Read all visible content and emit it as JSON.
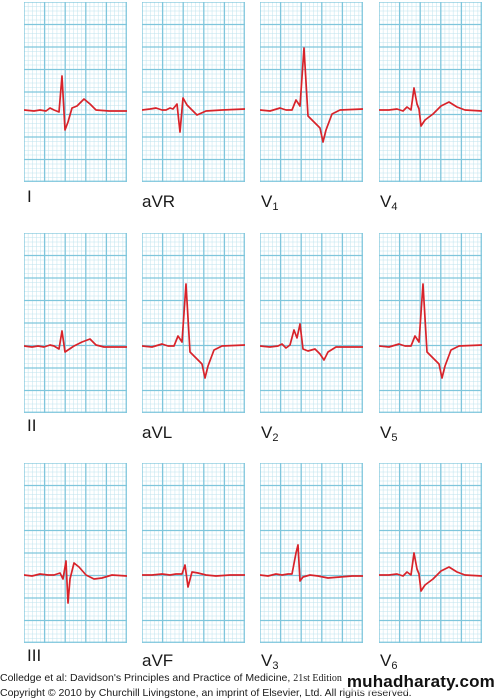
{
  "figure": {
    "grid_color": "#7fc6dc",
    "grid_minor_color": "#bfe3ee",
    "trace_color": "#d8232a",
    "leads": [
      {
        "lead": "I",
        "label_main": "I",
        "label_sub": "",
        "morphology": "upright-qRs"
      },
      {
        "lead": "aVR",
        "label_main": "aVR",
        "label_sub": "",
        "morphology": "negative-deep-S"
      },
      {
        "lead": "V1",
        "label_main": "V",
        "label_sub": "1",
        "morphology": "tall-R-deep-S"
      },
      {
        "lead": "V4",
        "label_main": "V",
        "label_sub": "4",
        "morphology": "RS-upright-T"
      },
      {
        "lead": "II",
        "label_main": "II",
        "label_sub": "",
        "morphology": "small-qRs"
      },
      {
        "lead": "aVL",
        "label_main": "aVL",
        "label_sub": "",
        "morphology": "tall-R-deep-S"
      },
      {
        "lead": "V2",
        "label_main": "V",
        "label_sub": "2",
        "morphology": "rsR-prime"
      },
      {
        "lead": "V5",
        "label_main": "V",
        "label_sub": "5",
        "morphology": "tall-R-deep-S"
      },
      {
        "lead": "III",
        "label_main": "III",
        "label_sub": "",
        "morphology": "rS-deep"
      },
      {
        "lead": "aVF",
        "label_main": "aVF",
        "label_sub": "",
        "morphology": "small-rS"
      },
      {
        "lead": "V3",
        "label_main": "V",
        "label_sub": "3",
        "morphology": "tall-R-small-S"
      },
      {
        "lead": "V6",
        "label_main": "V",
        "label_sub": "6",
        "morphology": "RS-upright-T"
      }
    ]
  },
  "footer": {
    "line1_text": "Colledge et al: Davidson's Principles and Practice of Medicine,",
    "line1_edition": "21st Edition",
    "line2_text": "Copyright © 2010 by Churchill Livingstone, an imprint of Elsevier, Ltd. All rights reserved."
  },
  "watermark": {
    "text": "muhadharaty.com"
  }
}
